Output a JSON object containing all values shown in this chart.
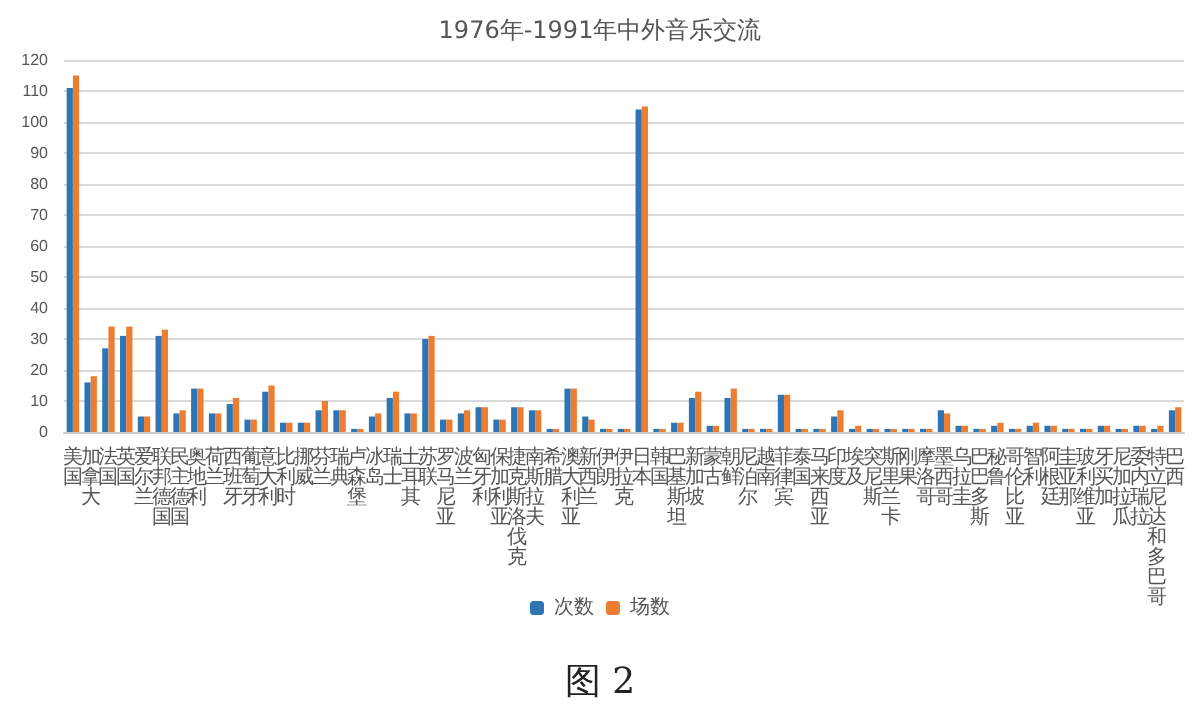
{
  "chart_data": {
    "type": "bar",
    "title": "1976年-1991年中外音乐交流",
    "categories": [
      "美国",
      "加拿大",
      "法国",
      "英国",
      "爱尔兰",
      "联邦德国",
      "民主德国",
      "奥地利",
      "荷兰",
      "西班牙",
      "葡萄牙",
      "意大利",
      "比利时",
      "挪威",
      "芬兰",
      "瑞典",
      "卢森堡",
      "冰岛",
      "瑞士",
      "土耳其",
      "苏联",
      "罗马尼亚",
      "波兰",
      "匈牙利",
      "保加利亚",
      "捷克斯洛伐克",
      "南斯拉夫",
      "希腊",
      "澳大利亚",
      "新西兰",
      "伊朗",
      "伊拉克",
      "日本",
      "韩国",
      "巴基斯坦",
      "新加坡",
      "蒙古",
      "朝鲜",
      "尼泊尔",
      "越南",
      "菲律宾",
      "泰国",
      "马来西亚",
      "印度",
      "埃及",
      "突尼斯",
      "斯里兰卡",
      "刚果",
      "摩洛哥",
      "墨西哥",
      "乌拉圭",
      "巴巴多斯",
      "秘鲁",
      "哥伦比亚",
      "智利",
      "阿根廷",
      "圭亚那",
      "玻利维亚",
      "牙买加",
      "尼加拉瓜",
      "委内瑞拉",
      "特立尼达和多巴哥",
      "巴西"
    ],
    "series": [
      {
        "name": "次数",
        "color": "#2e75b6",
        "values": [
          111,
          16,
          27,
          31,
          5,
          31,
          6,
          14,
          6,
          9,
          4,
          13,
          3,
          3,
          7,
          7,
          1,
          5,
          11,
          6,
          30,
          4,
          6,
          8,
          4,
          8,
          7,
          1,
          14,
          5,
          1,
          1,
          104,
          1,
          3,
          11,
          2,
          11,
          1,
          1,
          12,
          1,
          1,
          5,
          1,
          1,
          1,
          1,
          1,
          7,
          2,
          1,
          2,
          1,
          2,
          2,
          1,
          1,
          2,
          1,
          2,
          1,
          7
        ]
      },
      {
        "name": "场数",
        "color": "#ed7d31",
        "values": [
          115,
          18,
          34,
          34,
          5,
          33,
          7,
          14,
          6,
          11,
          4,
          15,
          3,
          3,
          10,
          7,
          1,
          6,
          13,
          6,
          31,
          4,
          7,
          8,
          4,
          8,
          7,
          1,
          14,
          4,
          1,
          1,
          105,
          1,
          3,
          13,
          2,
          14,
          1,
          1,
          12,
          1,
          1,
          7,
          2,
          1,
          1,
          1,
          1,
          6,
          2,
          1,
          3,
          1,
          3,
          2,
          1,
          1,
          2,
          1,
          2,
          2,
          8
        ]
      }
    ],
    "ylim": [
      0,
      120
    ],
    "yticks": [
      0,
      10,
      20,
      30,
      40,
      50,
      60,
      70,
      80,
      90,
      100,
      110,
      120
    ],
    "grid": "y",
    "legend": "bottom",
    "annotations": [
      "图 2"
    ]
  }
}
